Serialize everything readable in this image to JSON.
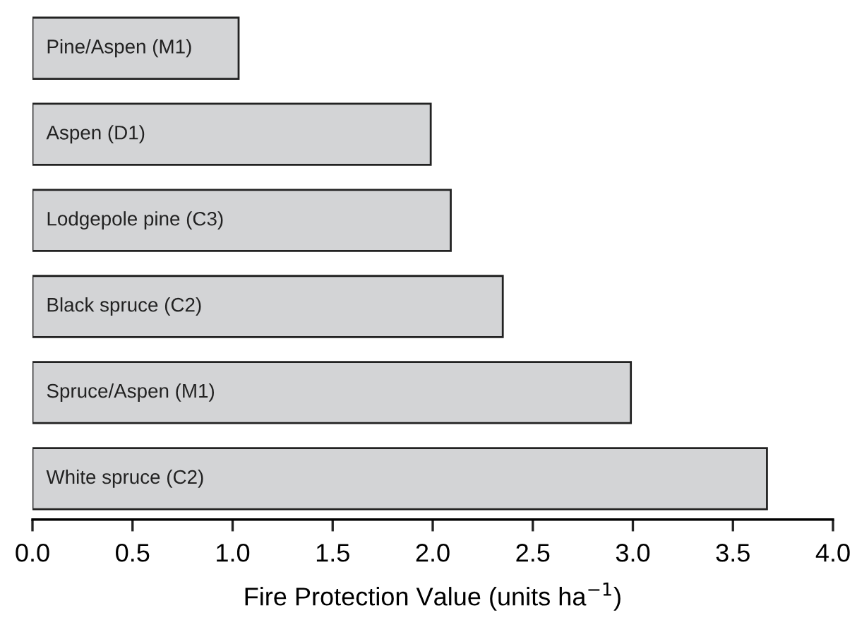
{
  "chart_data": {
    "type": "bar",
    "orientation": "horizontal",
    "categories": [
      "Pine/Aspen (M1)",
      "Aspen (D1)",
      "Lodgepole pine (C3)",
      "Black spruce (C2)",
      "Spruce/Aspen (M1)",
      "White spruce (C2)"
    ],
    "values": [
      1.03,
      1.99,
      2.09,
      2.35,
      2.99,
      3.67
    ],
    "color": "#d3d4d6",
    "xlabel": "Fire Protection Value (units ha$^{−1}$)",
    "xlim": [
      0,
      4.0
    ],
    "xticks": [
      {
        "value": 0,
        "label": "0.0"
      },
      0.5,
      {
        "value": 1,
        "label": "1.0"
      },
      1.5,
      {
        "value": 2,
        "label": "2.0"
      },
      2.5,
      {
        "value": 3,
        "label": "3.0"
      },
      3.5,
      {
        "value": 4,
        "label": "4.0"
      }
    ],
    "grid": false
  }
}
